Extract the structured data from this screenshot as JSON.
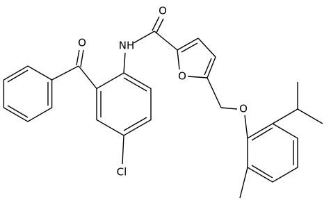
{
  "atoms": [
    {
      "label": "O"
    },
    {
      "label": "NH"
    },
    {
      "label": "O"
    },
    {
      "label": "O"
    },
    {
      "label": "O"
    },
    {
      "label": "Cl"
    }
  ]
}
